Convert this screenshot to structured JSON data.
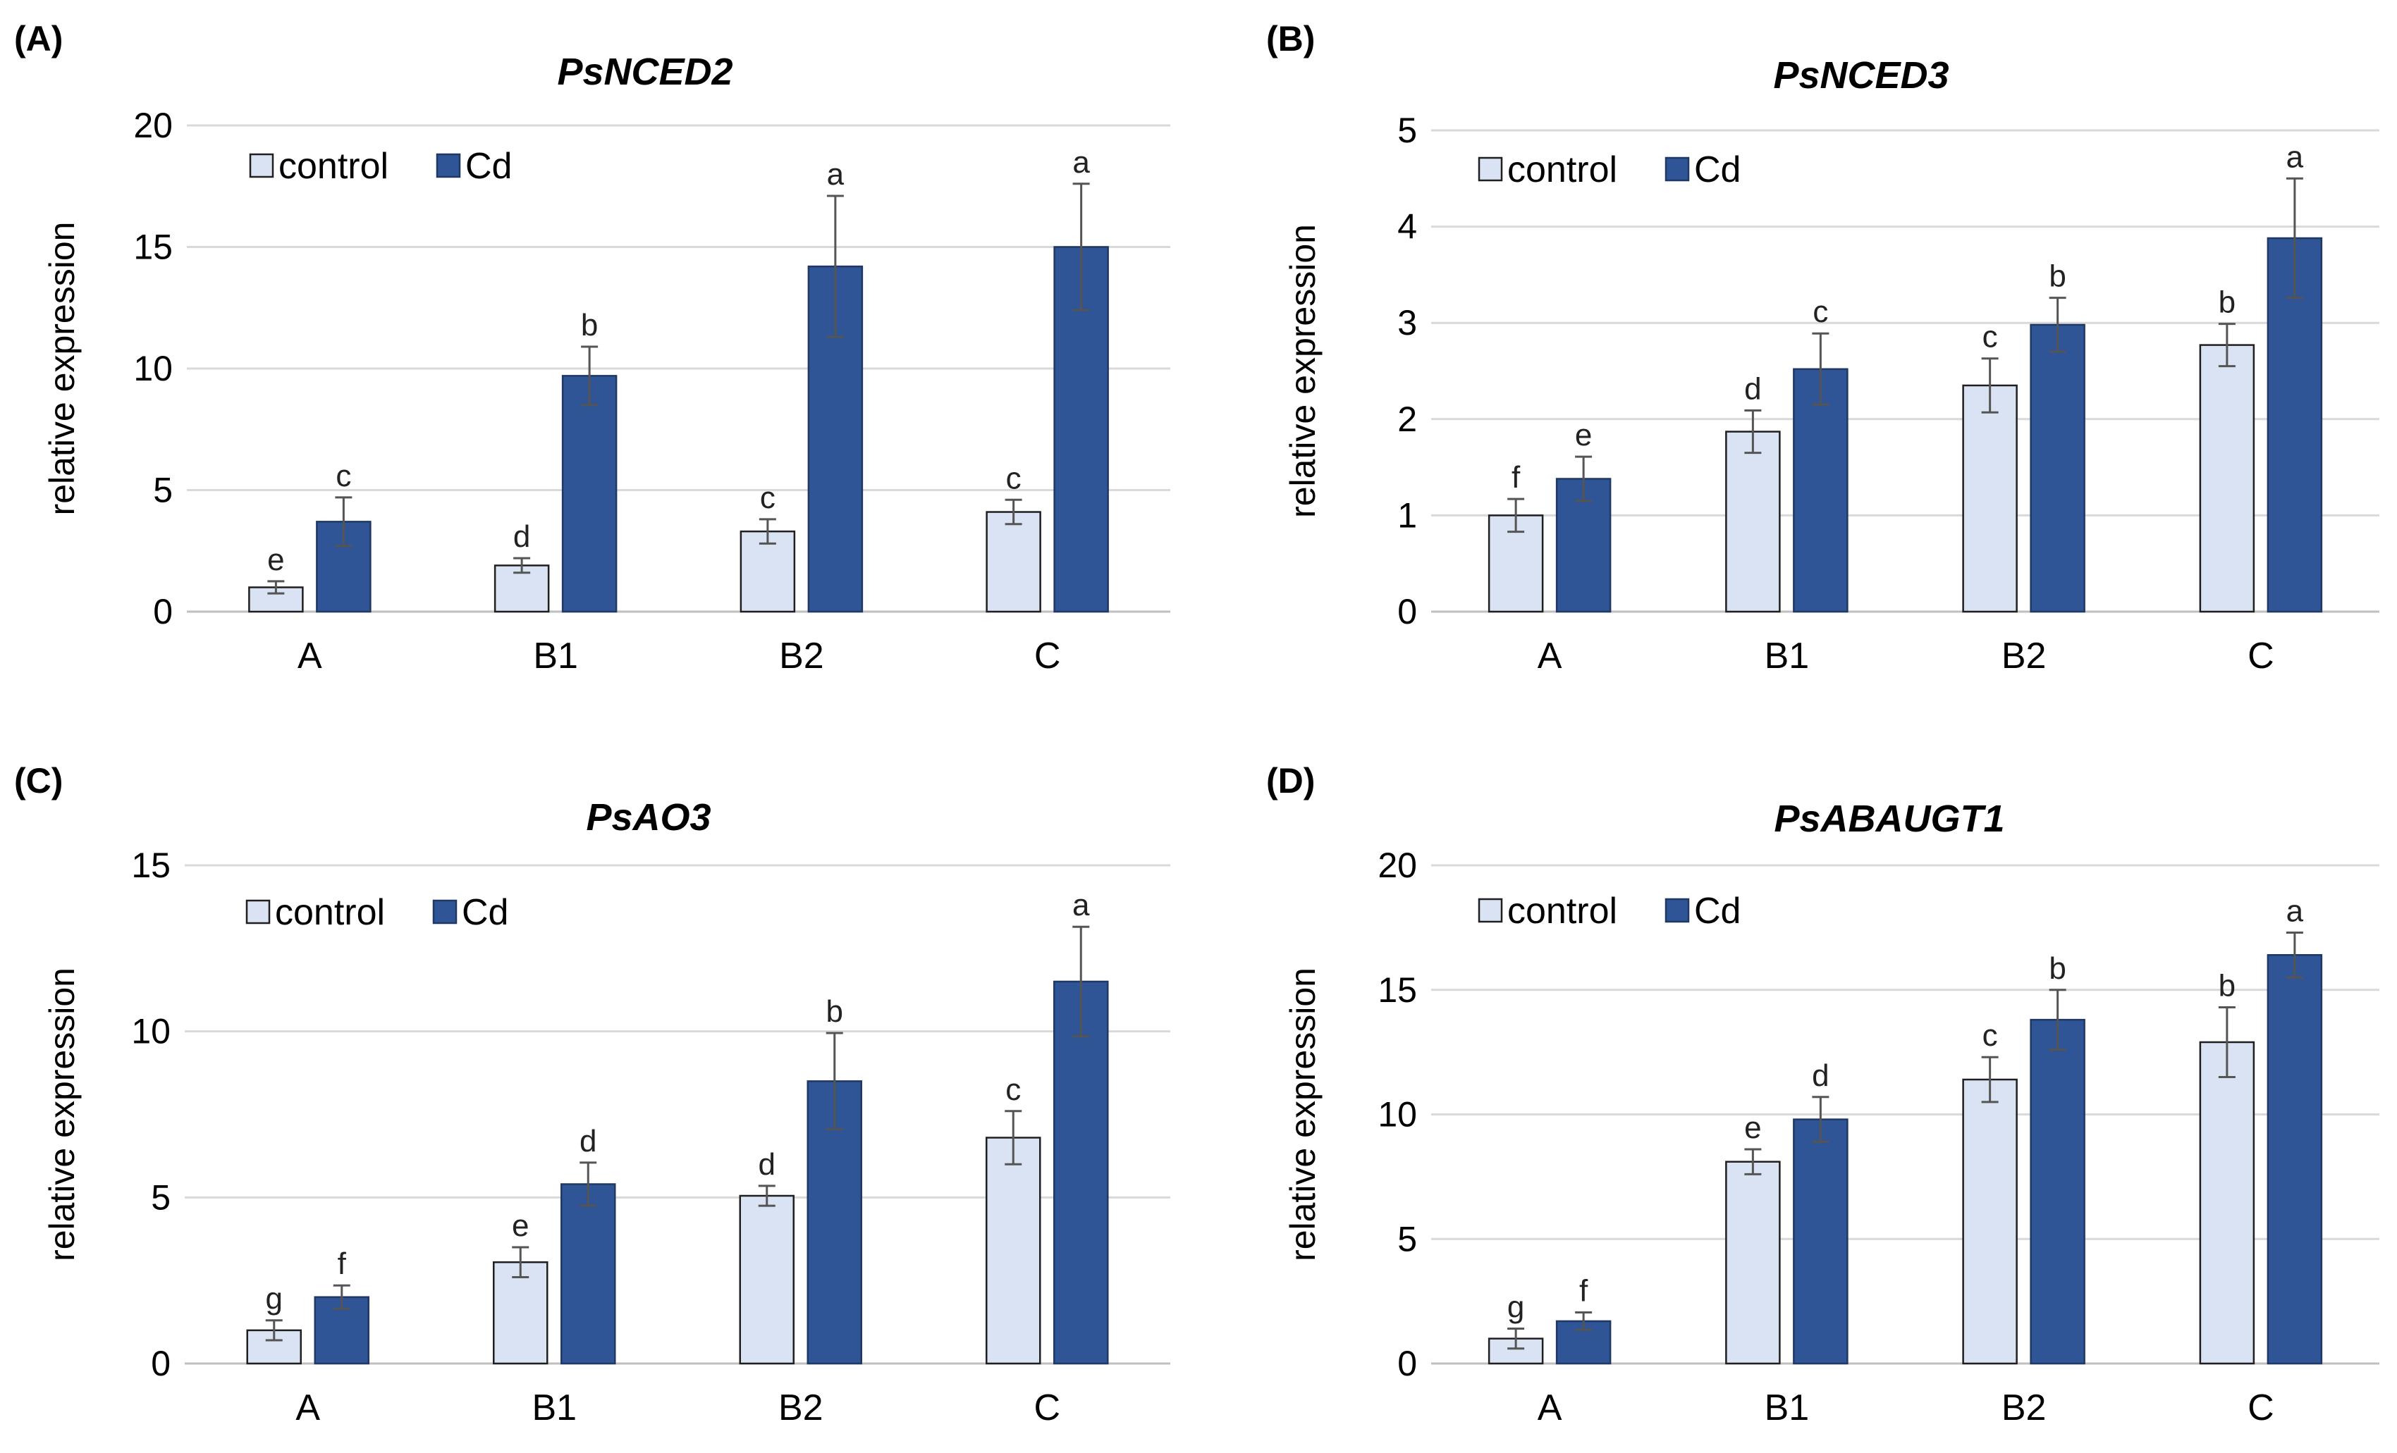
{
  "legend": {
    "control": "control",
    "treatment": "Cd"
  },
  "colors": {
    "control": "#dae3f3",
    "control_stroke": "#1f1f1f",
    "treatment": "#2f5597",
    "treatment_stroke": "#1f3864"
  },
  "chart_data": [
    {
      "type": "bar",
      "panel_label": "(A)",
      "title": "PsNCED2",
      "ylabel": "relative expression",
      "xlabel": "",
      "ylim": [
        0,
        20
      ],
      "yticks": [
        0,
        5,
        10,
        15,
        20
      ],
      "legend_position": "top-left",
      "categories": [
        "A",
        "B1",
        "B2",
        "C"
      ],
      "series": [
        {
          "name": "control",
          "values": [
            1.0,
            1.9,
            3.3,
            4.1
          ],
          "errors": [
            0.25,
            0.3,
            0.5,
            0.5
          ],
          "letters": [
            "e",
            "d",
            "c",
            "c"
          ]
        },
        {
          "name": "Cd",
          "values": [
            3.7,
            9.7,
            14.2,
            15.0
          ],
          "errors": [
            1.0,
            1.2,
            2.9,
            2.6
          ],
          "letters": [
            "c",
            "b",
            "a",
            "a"
          ]
        }
      ]
    },
    {
      "type": "bar",
      "panel_label": "(B)",
      "title": "PsNCED3",
      "ylabel": "relative expression",
      "xlabel": "",
      "ylim": [
        0,
        5
      ],
      "yticks": [
        0,
        1,
        2,
        3,
        4,
        5
      ],
      "legend_position": "top-left",
      "categories": [
        "A",
        "B1",
        "B2",
        "C"
      ],
      "series": [
        {
          "name": "control",
          "values": [
            1.0,
            1.87,
            2.35,
            2.77
          ],
          "errors": [
            0.17,
            0.22,
            0.28,
            0.22
          ],
          "letters": [
            "f",
            "d",
            "c",
            "b"
          ]
        },
        {
          "name": "Cd",
          "values": [
            1.38,
            2.52,
            2.98,
            3.88
          ],
          "errors": [
            0.23,
            0.37,
            0.28,
            0.62
          ],
          "letters": [
            "e",
            "c",
            "b",
            "a"
          ]
        }
      ]
    },
    {
      "type": "bar",
      "panel_label": "(C)",
      "title": "PsAO3",
      "ylabel": "relative expression",
      "xlabel": "",
      "ylim": [
        0,
        15
      ],
      "yticks": [
        0,
        5,
        10,
        15
      ],
      "legend_position": "top-left",
      "categories": [
        "A",
        "B1",
        "B2",
        "C"
      ],
      "series": [
        {
          "name": "control",
          "values": [
            1.0,
            3.05,
            5.05,
            6.8
          ],
          "errors": [
            0.3,
            0.45,
            0.3,
            0.8
          ],
          "letters": [
            "g",
            "e",
            "d",
            "c"
          ]
        },
        {
          "name": "Cd",
          "values": [
            2.0,
            5.4,
            8.5,
            11.5
          ],
          "errors": [
            0.35,
            0.65,
            1.45,
            1.65
          ],
          "letters": [
            "f",
            "d",
            "b",
            "a"
          ]
        }
      ]
    },
    {
      "type": "bar",
      "panel_label": "(D)",
      "title": "PsABAUGT1",
      "ylabel": "relative expression",
      "xlabel": "",
      "ylim": [
        0,
        20
      ],
      "yticks": [
        0,
        5,
        10,
        15,
        20
      ],
      "legend_position": "top-left",
      "categories": [
        "A",
        "B1",
        "B2",
        "C"
      ],
      "series": [
        {
          "name": "control",
          "values": [
            1.0,
            8.1,
            11.4,
            12.9
          ],
          "errors": [
            0.4,
            0.5,
            0.9,
            1.4
          ],
          "letters": [
            "g",
            "e",
            "c",
            "b"
          ]
        },
        {
          "name": "Cd",
          "values": [
            1.7,
            9.8,
            13.8,
            16.4
          ],
          "errors": [
            0.35,
            0.9,
            1.2,
            0.9
          ],
          "letters": [
            "f",
            "d",
            "b",
            "a"
          ]
        }
      ]
    }
  ]
}
